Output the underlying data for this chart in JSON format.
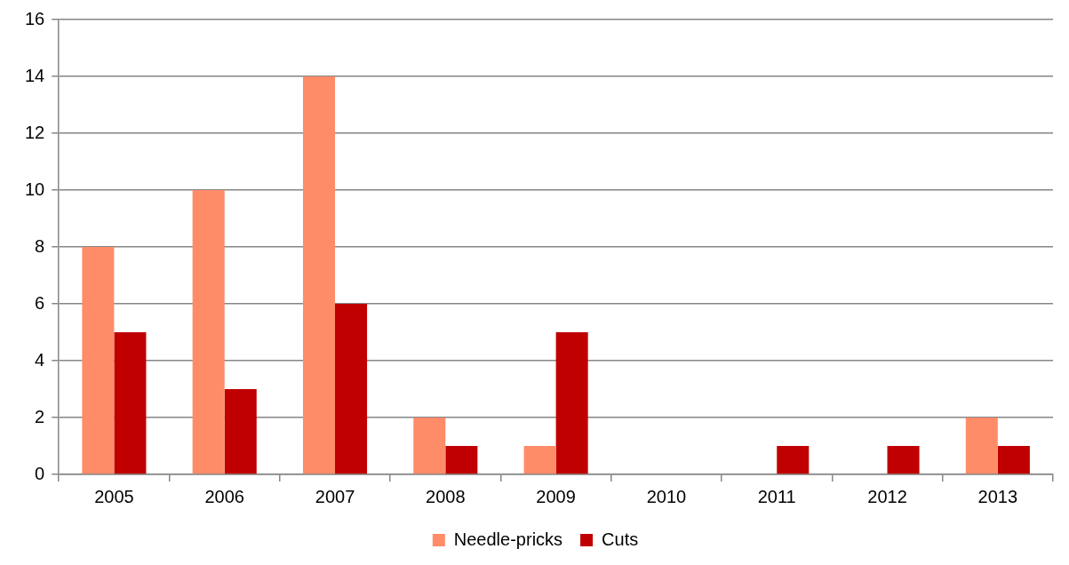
{
  "chart_data": {
    "type": "bar",
    "categories": [
      "2005",
      "2006",
      "2007",
      "2008",
      "2009",
      "2010",
      "2011",
      "2012",
      "2013"
    ],
    "series": [
      {
        "name": "Needle-pricks",
        "color": "#ff8c69",
        "values": [
          8,
          10,
          14,
          2,
          1,
          0,
          0,
          0,
          2
        ]
      },
      {
        "name": "Cuts",
        "color": "#c00000",
        "values": [
          5,
          3,
          6,
          1,
          5,
          0,
          1,
          1,
          1
        ]
      }
    ],
    "ylim": [
      0,
      16
    ],
    "yticks": [
      0,
      2,
      4,
      6,
      8,
      10,
      12,
      14,
      16
    ],
    "grid": "y",
    "legend": "bottom"
  }
}
